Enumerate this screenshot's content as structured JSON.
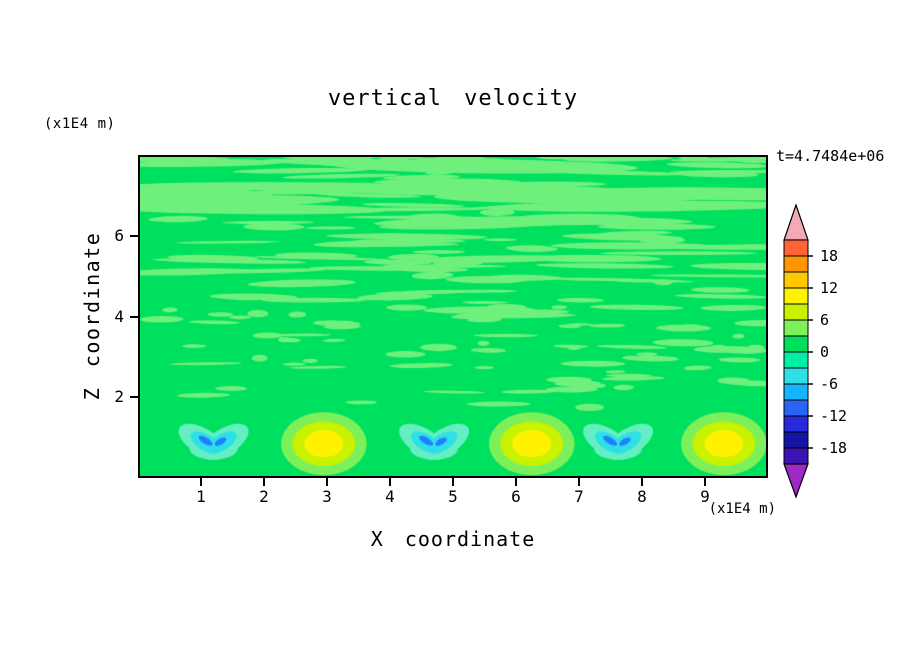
{
  "chart_data": {
    "type": "contour",
    "title": "vertical velocity",
    "time_annotation": "t=4.7484e+06",
    "xlabel": "X coordinate",
    "ylabel": "Z coordinate",
    "x_axis_units": "(x1E4 m)",
    "y_axis_units": "(x1E4 m)",
    "xlim": [
      0,
      10
    ],
    "ylim": [
      0,
      8
    ],
    "xticks": [
      1,
      2,
      3,
      4,
      5,
      6,
      7,
      8,
      9
    ],
    "yticks": [
      2,
      4,
      6
    ],
    "grid": false,
    "legend_position": "right-colorbar",
    "colorbar": {
      "tick_labels": [
        "18",
        "12",
        "6",
        "0",
        "-6",
        "-12",
        "-18"
      ],
      "levels_step": 3,
      "range": [
        -21,
        21
      ],
      "segment_colors_top_to_bottom": [
        "#FF6438",
        "#FF9600",
        "#FFC800",
        "#FFF200",
        "#C8F200",
        "#7DF059",
        "#00E05F",
        "#00EFA5",
        "#2EE0E6",
        "#14B4FF",
        "#2864F5",
        "#2828DC",
        "#1414A5",
        "#3C14B4"
      ],
      "top_arrow_color": "#F2AAB9",
      "bottom_arrow_color": "#A028C8"
    },
    "field": {
      "seed": 7,
      "background_color": "#00E05F",
      "background_value_band": [
        0,
        3
      ],
      "streak_color": "#6FF07D",
      "streak_value_band": [
        3,
        6
      ],
      "streak_count": 175,
      "streak_zone": [
        1.7,
        8.0
      ],
      "updrafts": [
        {
          "x": 2.95,
          "z": 0.85
        },
        {
          "x": 6.25,
          "z": 0.85
        },
        {
          "x": 9.3,
          "z": 0.85
        }
      ],
      "updraft_rings": {
        "rx_units": [
          0.68,
          0.5,
          0.31
        ],
        "rz_units": [
          0.78,
          0.55,
          0.34
        ],
        "colors": [
          "#7DF059",
          "#C8F200",
          "#FFF200"
        ]
      },
      "downdrafts": [
        {
          "x": 1.2,
          "z": 0.9
        },
        {
          "x": 4.7,
          "z": 0.9
        },
        {
          "x": 7.62,
          "z": 0.9
        }
      ],
      "downdraft_colors": [
        "#64EFC3",
        "#2EE0E6",
        "#1E82FF"
      ]
    }
  }
}
